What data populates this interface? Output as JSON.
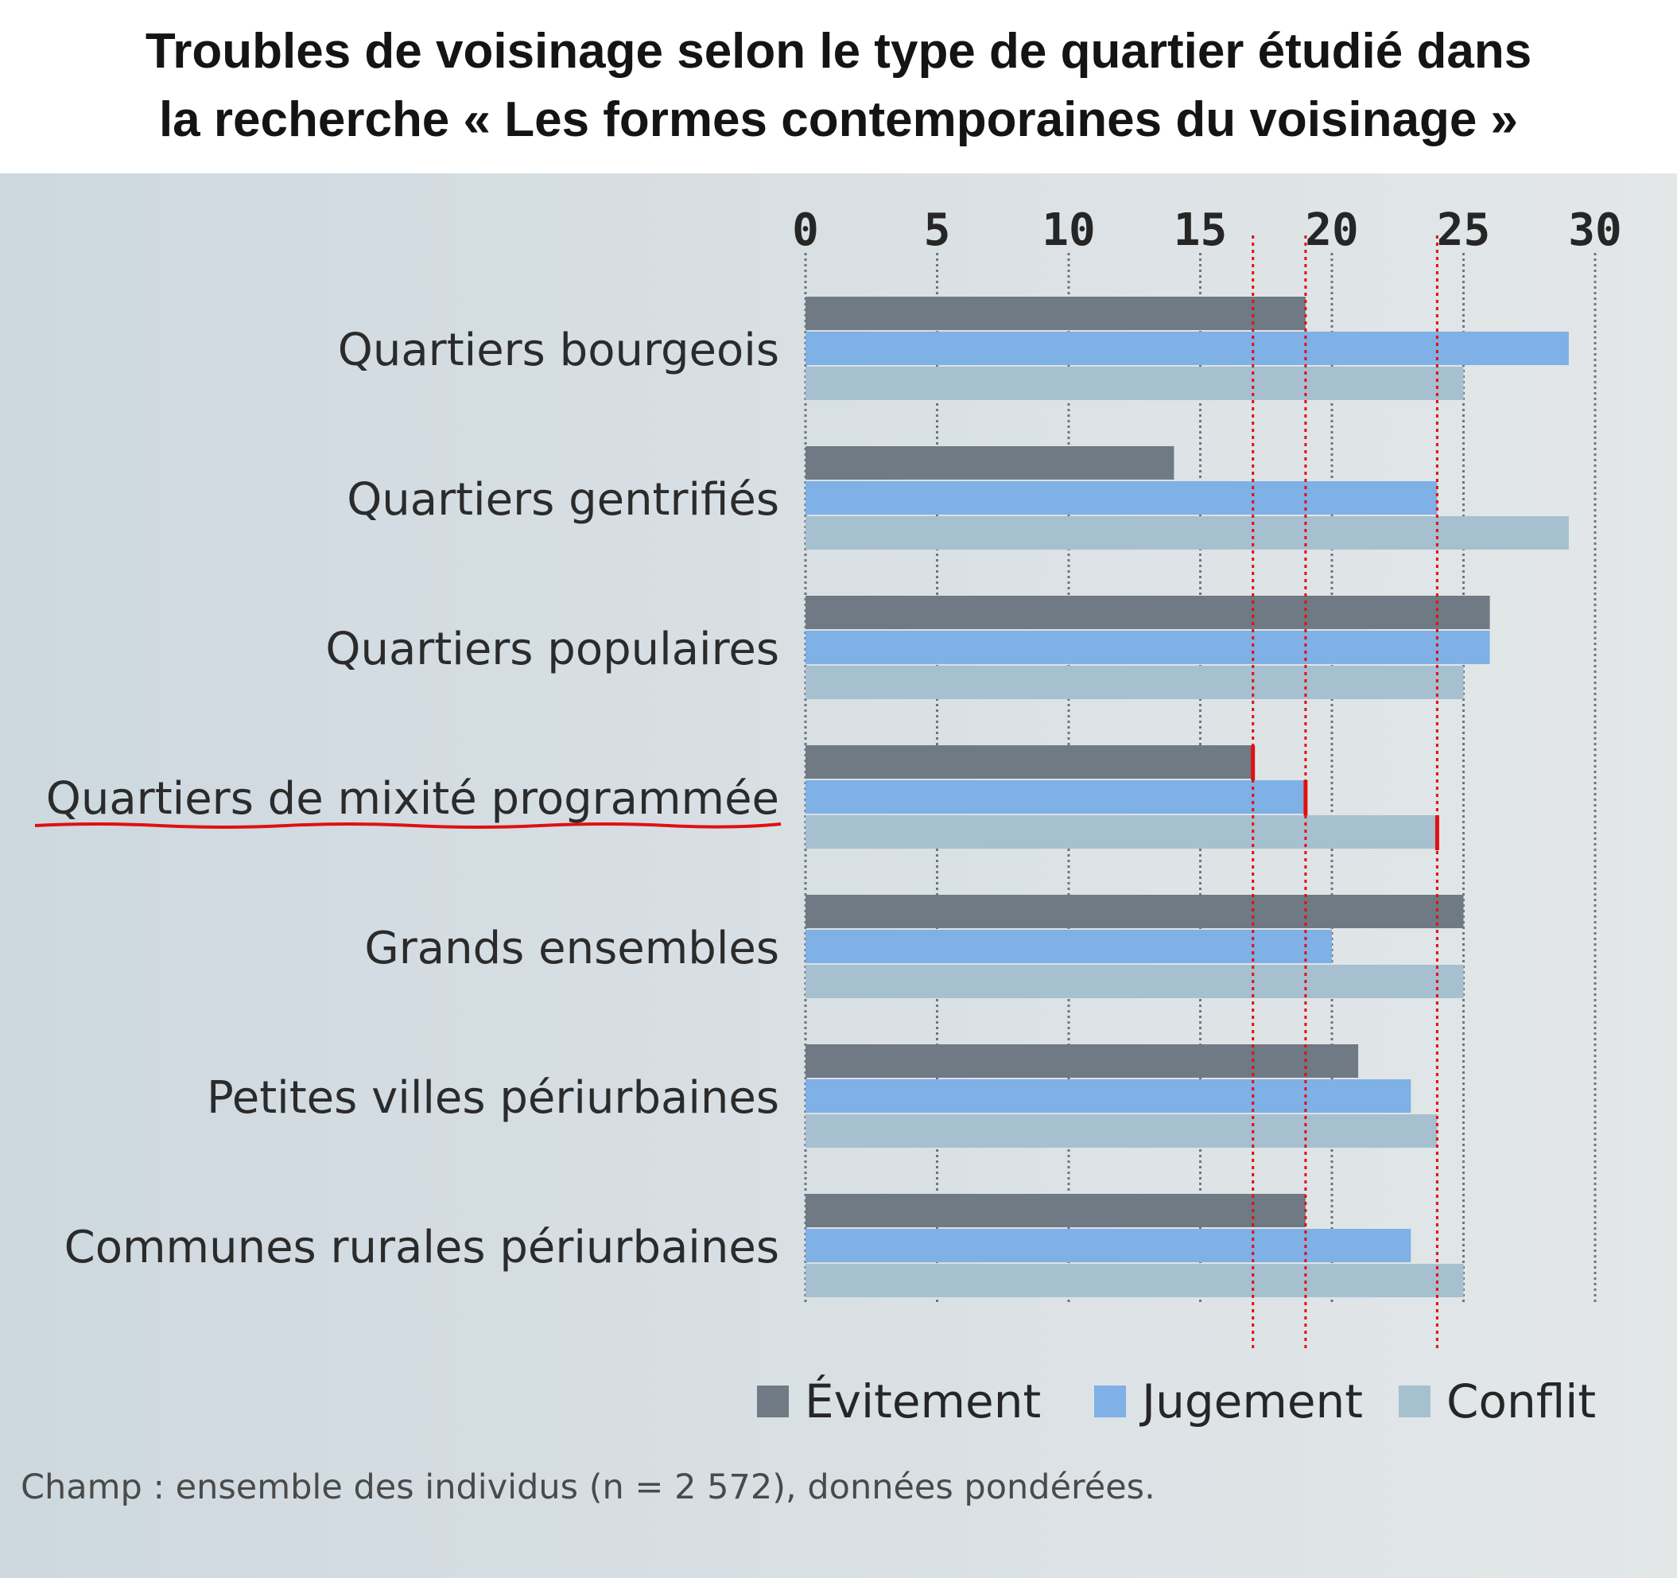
{
  "title_lines": [
    "Troubles de voisinage selon le type de quartier étudié dans",
    "la recherche « Les formes contemporaines du voisinage »"
  ],
  "note": "Champ : ensemble des individus (n = 2 572), données pondérées.",
  "colors": {
    "evitement": "#6f7a84",
    "jugement": "#7fb0e6",
    "conflit": "#a6c0d0",
    "grid": "#4a5058",
    "reference_line": "#e01010",
    "highlight_underline": "#e01010"
  },
  "chart_data": {
    "type": "bar",
    "orientation": "horizontal",
    "categories": [
      "Quartiers bourgeois",
      "Quartiers gentrifiés",
      "Quartiers populaires",
      "Quartiers de mixité programmée",
      "Grands ensembles",
      "Petites villes périurbaines",
      "Communes rurales périurbaines"
    ],
    "series": [
      {
        "name": "Évitement",
        "values": [
          19,
          14,
          26,
          17,
          25,
          21,
          19
        ]
      },
      {
        "name": "Jugement",
        "values": [
          29,
          24,
          26,
          19,
          20,
          23,
          23
        ]
      },
      {
        "name": "Conflit",
        "values": [
          25,
          29,
          25,
          24,
          25,
          24,
          25
        ]
      }
    ],
    "xlim": [
      0,
      30
    ],
    "x_ticks": [
      "0",
      "5",
      "10",
      "15",
      "20",
      "25",
      "30"
    ],
    "x_tick_values": [
      0,
      5,
      10,
      15,
      20,
      25,
      30
    ],
    "axis_position": "top",
    "grid": true,
    "legend_position": "bottom-right",
    "highlighted_category": "Quartiers de mixité programmée",
    "reference_lines": [
      17,
      19,
      24
    ]
  }
}
